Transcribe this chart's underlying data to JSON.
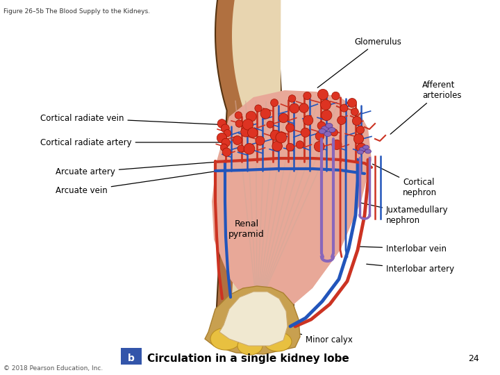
{
  "fig_title": "Figure 26–5b The Blood Supply to the Kidneys.",
  "bottom_label_b": "b",
  "bottom_label_text": "Circulation in a single kidney lobe",
  "page_number": "24",
  "copyright": "© 2018 Pearson Education, Inc.",
  "bg_color": "#ffffff",
  "colors": {
    "outer_brown": "#b07040",
    "cortex_tan": "#e8d5b0",
    "medulla_pink": "#e8a898",
    "medulla_stripe": "#d49080",
    "calyx_tan": "#c8a060",
    "calyx_yellow": "#d4b060",
    "red": "#cc3322",
    "blue": "#2255bb",
    "purple": "#8866bb",
    "dark": "#111111"
  }
}
